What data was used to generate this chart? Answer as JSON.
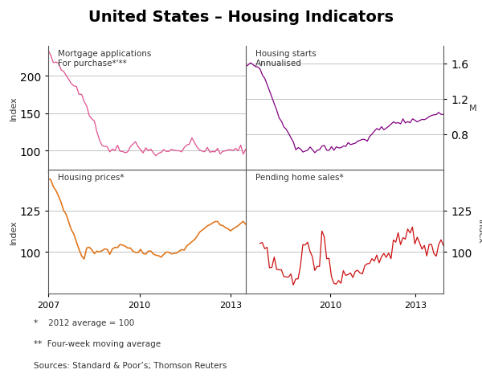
{
  "title": "United States – Housing Indicators",
  "title_fontsize": 14,
  "footnotes": [
    "*    2012 average = 100",
    "**  Four-week moving average",
    "Sources: Standard & Poor’s; Thomson Reuters"
  ],
  "col_pink": "#E05090",
  "col_purple": "#800080",
  "col_orange": "#E07820",
  "col_red": "#CC1010",
  "col_grid": "#AAAAAA",
  "top_left": {
    "title": "Mortgage applications\nFor purchase*'**",
    "ylabel": "Index",
    "ylim": [
      75,
      240
    ],
    "yticks": [
      100,
      150,
      200
    ],
    "xlim": [
      2007.0,
      2013.5
    ],
    "xticks": [
      2007,
      2010,
      2013
    ]
  },
  "top_right": {
    "title": "Housing starts\nAnnualised",
    "ylabel": "M",
    "ylim": [
      0.4,
      1.8
    ],
    "yticks": [
      0.8,
      1.2,
      1.6
    ],
    "xlim": [
      2007.0,
      2014.0
    ],
    "xticks": [
      2010,
      2013
    ]
  },
  "bottom_left": {
    "title": "Housing prices*",
    "ylabel": "Index",
    "ylim": [
      75,
      150
    ],
    "yticks": [
      100,
      125
    ],
    "xlim": [
      2007.0,
      2013.5
    ],
    "xticks": [
      2007,
      2010,
      2013
    ],
    "xticklabels": [
      "2007",
      "2010",
      "2013"
    ]
  },
  "bottom_right": {
    "title": "Pending home sales*",
    "ylabel": "Index",
    "ylim": [
      75,
      150
    ],
    "yticks": [
      100,
      125
    ],
    "xlim": [
      2007.0,
      2014.0
    ],
    "xticks": [
      2010,
      2013
    ],
    "xticklabels": [
      "2010",
      "2013"
    ]
  }
}
